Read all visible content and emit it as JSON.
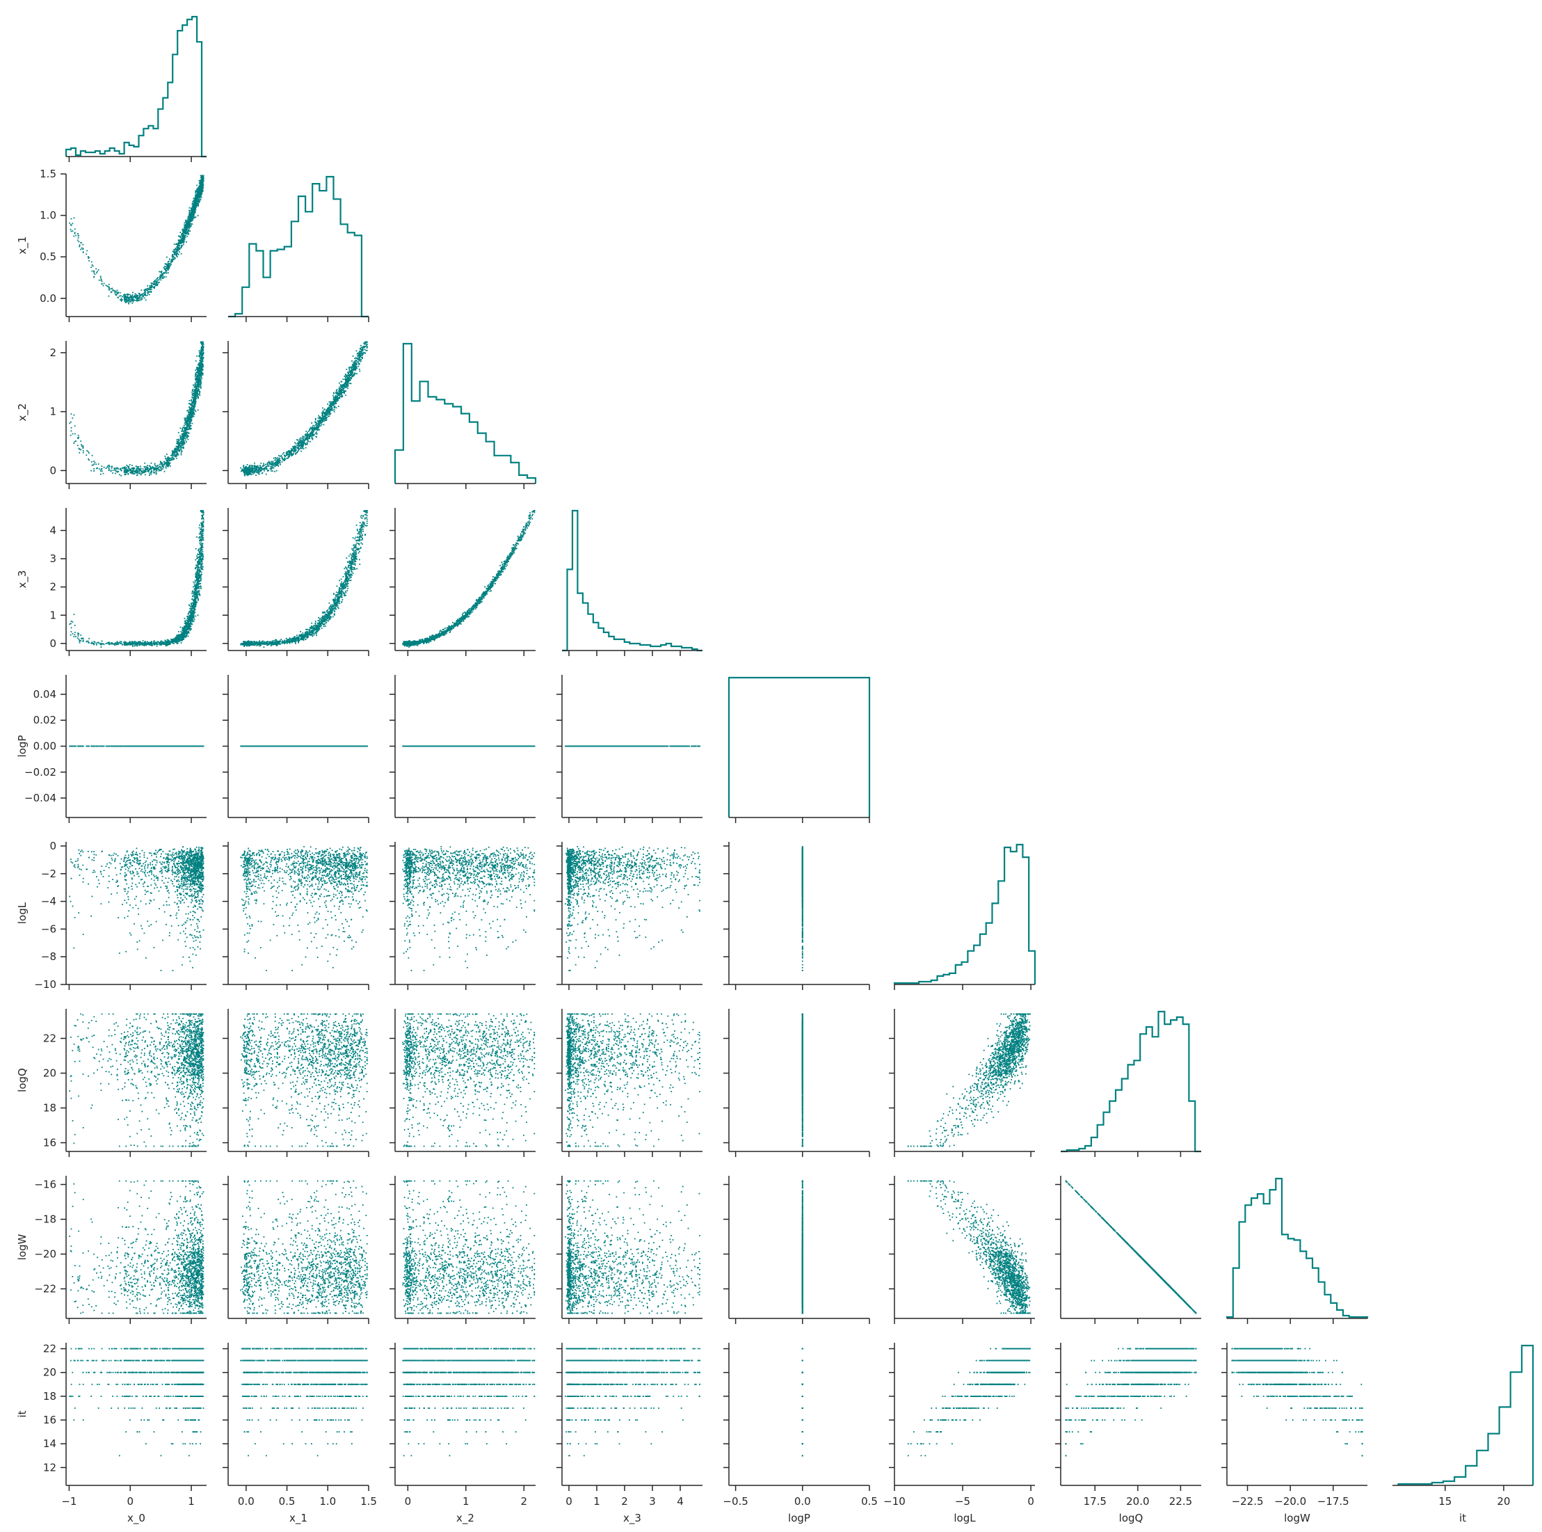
{
  "chart_data": {
    "type": "scatter",
    "subtype": "pairplot-corner",
    "color": "#008080",
    "grid": false,
    "variables": [
      "x_0",
      "x_1",
      "x_2",
      "x_3",
      "logP",
      "logL",
      "logQ",
      "logW",
      "it"
    ],
    "axes": {
      "x_0": {
        "lim": [
          -1.05,
          1.25
        ],
        "ticks": [
          -1,
          0,
          1
        ],
        "tick_labels": [
          "−1",
          "0",
          "1"
        ]
      },
      "x_1": {
        "lim": [
          -0.22,
          1.5
        ],
        "ticks": [
          0.0,
          0.5,
          1.0,
          1.5
        ],
        "tick_labels": [
          "0.0",
          "0.5",
          "1.0",
          "1.5"
        ]
      },
      "x_2": {
        "lim": [
          -0.22,
          2.2
        ],
        "ticks": [
          0,
          1,
          2
        ],
        "tick_labels": [
          "0",
          "1",
          "2"
        ]
      },
      "x_3": {
        "lim": [
          -0.25,
          4.8
        ],
        "ticks": [
          0,
          1,
          2,
          3,
          4
        ],
        "tick_labels": [
          "0",
          "1",
          "2",
          "3",
          "4"
        ]
      },
      "logP": {
        "lim": [
          -0.055,
          0.055
        ],
        "ticks": [
          -0.04,
          -0.02,
          0.0,
          0.02,
          0.04
        ],
        "tick_labels": [
          "−0.04",
          "−0.02",
          "0.00",
          "0.02",
          "0.04"
        ],
        "x_lim": [
          -0.55,
          0.5
        ],
        "x_ticks": [
          -0.5,
          0.0,
          0.5
        ],
        "x_tick_labels": [
          "−0.5",
          "0.0",
          "0.5"
        ]
      },
      "logL": {
        "lim": [
          -10,
          0.3
        ],
        "ticks": [
          -10,
          -8,
          -6,
          -4,
          -2,
          0
        ],
        "tick_labels": [
          "−10",
          "−8",
          "−6",
          "−4",
          "−2",
          "0"
        ],
        "x_ticks": [
          -10,
          -5,
          0
        ],
        "x_tick_labels": [
          "−10",
          "−5",
          "0"
        ]
      },
      "logQ": {
        "lim": [
          15.5,
          23.7
        ],
        "ticks": [
          16,
          18,
          20,
          22
        ],
        "tick_labels": [
          "16",
          "18",
          "20",
          "22"
        ],
        "x_ticks": [
          17.5,
          20.0,
          22.5
        ],
        "x_tick_labels": [
          "17.5",
          "20.0",
          "22.5"
        ]
      },
      "logW": {
        "lim": [
          -23.7,
          -15.5
        ],
        "ticks": [
          -22,
          -20,
          -18,
          -16
        ],
        "tick_labels": [
          "−22",
          "−20",
          "−18",
          "−16"
        ],
        "x_ticks": [
          -22.5,
          -20.0,
          -17.5
        ],
        "x_tick_labels": [
          "−22.5",
          "−20.0",
          "−17.5"
        ]
      },
      "it": {
        "lim": [
          10.5,
          22.5
        ],
        "ticks": [
          12,
          14,
          16,
          18,
          20,
          22
        ],
        "tick_labels": [
          "12",
          "14",
          "16",
          "18",
          "20",
          "22"
        ],
        "x_lim": [
          10.5,
          22.5
        ],
        "x_ticks": [
          15,
          20
        ],
        "x_tick_labels": [
          "15",
          "20"
        ]
      }
    },
    "histograms": {
      "x_0": {
        "edges": [
          -1.05,
          1.25
        ],
        "heights": [
          0.05,
          0.06,
          0.01,
          0.04,
          0.03,
          0.03,
          0.04,
          0.02,
          0.04,
          0.06,
          0.04,
          0.02,
          0.1,
          0.08,
          0.07,
          0.15,
          0.2,
          0.22,
          0.2,
          0.34,
          0.42,
          0.53,
          0.73,
          0.9,
          0.94,
          0.98,
          1.0,
          0.82,
          0.0
        ]
      },
      "x_1": {
        "edges": [
          -0.22,
          1.5
        ],
        "heights": [
          0.0,
          0.02,
          0.21,
          0.52,
          0.47,
          0.28,
          0.47,
          0.48,
          0.5,
          0.68,
          0.86,
          0.75,
          0.95,
          0.9,
          1.0,
          0.84,
          0.66,
          0.6,
          0.58,
          0.0
        ]
      },
      "x_2": {
        "edges": [
          -0.22,
          2.2
        ],
        "heights": [
          0.24,
          1.0,
          0.59,
          0.73,
          0.62,
          0.6,
          0.57,
          0.55,
          0.5,
          0.44,
          0.36,
          0.3,
          0.2,
          0.2,
          0.15,
          0.06,
          0.04
        ]
      },
      "x_3": {
        "edges": [
          -0.25,
          4.8
        ],
        "heights": [
          0.0,
          0.58,
          1.0,
          0.41,
          0.34,
          0.26,
          0.2,
          0.16,
          0.13,
          0.1,
          0.08,
          0.08,
          0.06,
          0.05,
          0.05,
          0.04,
          0.04,
          0.03,
          0.03,
          0.04,
          0.05,
          0.03,
          0.03,
          0.02,
          0.02,
          0.01,
          0.0
        ]
      },
      "logP": {
        "edges": [
          -0.55,
          0.5
        ],
        "heights": [
          1.0
        ]
      },
      "logL": {
        "edges": [
          -10,
          0.3
        ],
        "heights": [
          0.01,
          0.01,
          0.01,
          0.01,
          0.02,
          0.02,
          0.03,
          0.06,
          0.07,
          0.08,
          0.14,
          0.16,
          0.24,
          0.28,
          0.36,
          0.44,
          0.58,
          0.74,
          0.98,
          0.95,
          1.0,
          0.91,
          0.24
        ]
      },
      "logQ": {
        "edges": [
          15.5,
          23.7
        ],
        "heights": [
          0.0,
          0.01,
          0.01,
          0.02,
          0.04,
          0.1,
          0.19,
          0.28,
          0.36,
          0.44,
          0.52,
          0.62,
          0.65,
          0.84,
          0.89,
          0.82,
          1.0,
          0.91,
          0.94,
          0.96,
          0.91,
          0.36,
          0.0
        ]
      },
      "logW": {
        "edges": [
          -23.7,
          -15.5
        ],
        "heights": [
          0.01,
          0.36,
          0.69,
          0.81,
          0.86,
          0.89,
          0.82,
          0.92,
          1.0,
          0.6,
          0.57,
          0.56,
          0.48,
          0.43,
          0.36,
          0.26,
          0.17,
          0.11,
          0.06,
          0.02,
          0.01,
          0.01,
          0.01
        ]
      },
      "it": {
        "edges": [
          11.0,
          22.5
        ],
        "bins": [
          11,
          12,
          13,
          14,
          15,
          16,
          17,
          18,
          19,
          20,
          21,
          22
        ],
        "heights": [
          0.01,
          0.01,
          0.01,
          0.02,
          0.03,
          0.06,
          0.14,
          0.25,
          0.37,
          0.56,
          0.81,
          1.0
        ]
      }
    },
    "relations": {
      "x_1": "x_0^2",
      "x_2": "x_1^2",
      "x_3": "x_2^2",
      "logP": "0",
      "logQ": "logL + 22.8",
      "logW": "-logQ",
      "it": "integer, increasing with logL"
    },
    "sample_count": 1500
  }
}
